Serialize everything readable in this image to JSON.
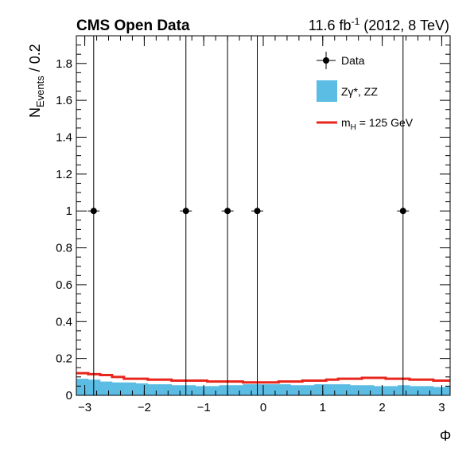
{
  "header": {
    "left_label": "CMS Open Data",
    "right_prefix": "11.6 fb",
    "right_sup": "-1",
    "right_suffix": " (2012, 8 TeV)"
  },
  "axes": {
    "ylabel_main": "N",
    "ylabel_sub": "Events",
    "ylabel_tail": " / 0.2",
    "xlabel": "Φ"
  },
  "legend": {
    "data_label": "Data",
    "bkg_label": "Zγ*, ZZ",
    "sig_label_main": "m",
    "sig_label_sub": "H",
    "sig_label_tail": " = 125 GeV"
  },
  "chart_data": {
    "type": "histogram",
    "xlim": [
      -3.14159,
      3.14159
    ],
    "ylim": [
      0,
      1.95
    ],
    "bin_width": 0.2,
    "x_ticks": [
      -3,
      -2,
      -1,
      0,
      1,
      2,
      3
    ],
    "x_tick_labels": [
      "−3",
      "−2",
      "−1",
      "0",
      "1",
      "2",
      "3"
    ],
    "y_ticks": [
      0,
      0.2,
      0.4,
      0.6,
      0.8,
      1,
      1.2,
      1.4,
      1.6,
      1.8
    ],
    "y_tick_labels": [
      "0",
      "0.2",
      "0.4",
      "0.6",
      "0.8",
      "1",
      "1.2",
      "1.4",
      "1.6",
      "1.8"
    ],
    "background_color": "#5bbce4",
    "signal_color": "#e8261c",
    "background_values": [
      0.09,
      0.085,
      0.075,
      0.07,
      0.07,
      0.065,
      0.06,
      0.06,
      0.055,
      0.055,
      0.05,
      0.05,
      0.055,
      0.055,
      0.06,
      0.06,
      0.06,
      0.06,
      0.055,
      0.055,
      0.06,
      0.06,
      0.06,
      0.055,
      0.055,
      0.05,
      0.05,
      0.055,
      0.05,
      0.05,
      0.045,
      0.05,
      0.055,
      0.055,
      0.06,
      0.06,
      0.055,
      0.06,
      0.06,
      0.055,
      0.055,
      0.05,
      0.05,
      0.045,
      0.05,
      0.055,
      0.055,
      0.05,
      0.045,
      0.05,
      0.055,
      0.06,
      0.065,
      0.07,
      0.08,
      0.085,
      0.09,
      0.085,
      0.08,
      0.075,
      0.07,
      0.07,
      0.08
    ],
    "signal_values": [
      0.12,
      0.115,
      0.11,
      0.1,
      0.09,
      0.09,
      0.085,
      0.085,
      0.08,
      0.08,
      0.08,
      0.075,
      0.075,
      0.075,
      0.07,
      0.07,
      0.07,
      0.075,
      0.075,
      0.08,
      0.08,
      0.085,
      0.09,
      0.09,
      0.095,
      0.095,
      0.09,
      0.09,
      0.085,
      0.085,
      0.08,
      0.08,
      0.08,
      0.075,
      0.075,
      0.07,
      0.08,
      0.08,
      0.085,
      0.085,
      0.075,
      0.075,
      0.07,
      0.07,
      0.075,
      0.075,
      0.08,
      0.08,
      0.085,
      0.085,
      0.08,
      0.08,
      0.09,
      0.1,
      0.11,
      0.115,
      0.12,
      0.12,
      0.115,
      0.11,
      0.11,
      0.115,
      0.12
    ],
    "data_points": [
      {
        "x": -2.85,
        "y": 1
      },
      {
        "x": -1.3,
        "y": 1
      },
      {
        "x": -0.6,
        "y": 1
      },
      {
        "x": -0.1,
        "y": 1
      },
      {
        "x": 2.35,
        "y": 1
      }
    ],
    "data_xerr": 0.1
  }
}
